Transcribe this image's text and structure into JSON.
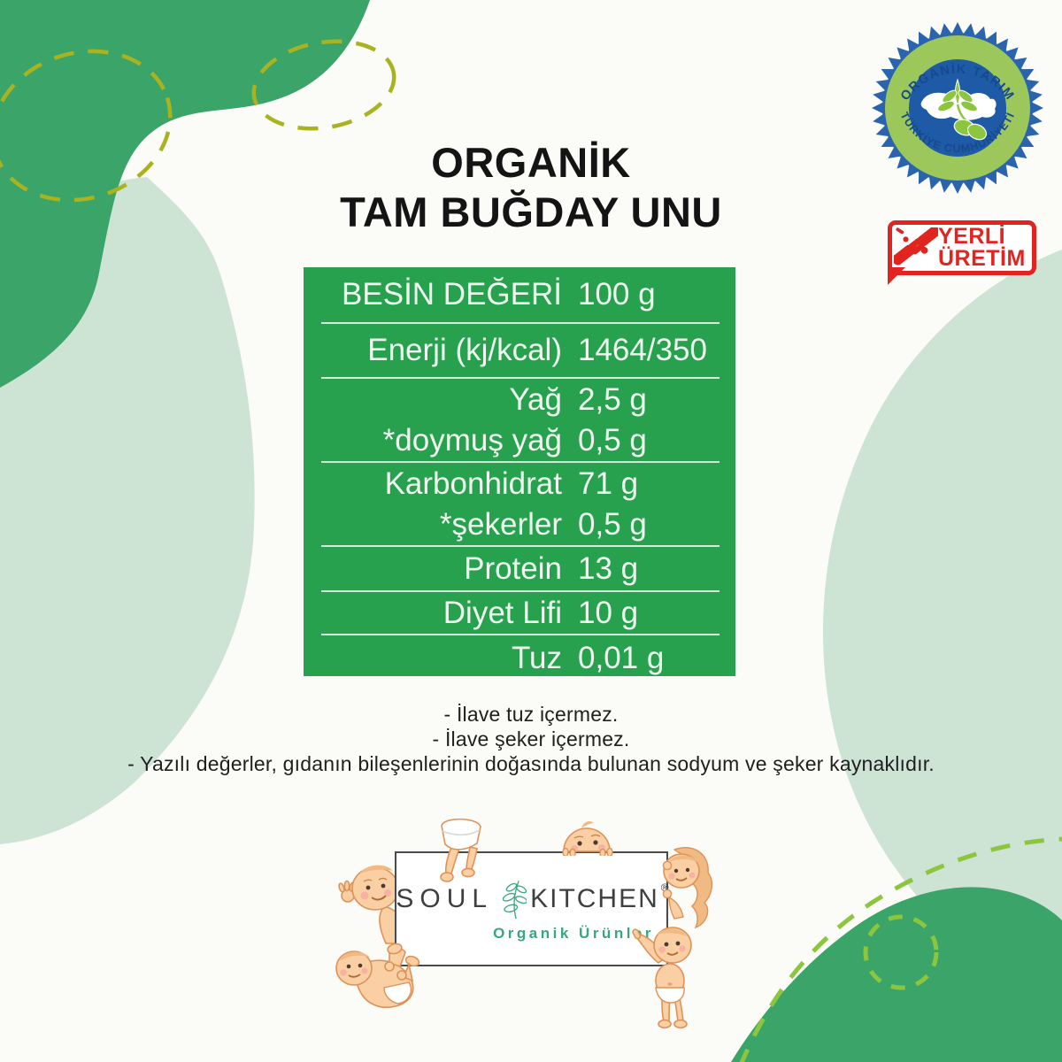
{
  "title": {
    "line1": "ORGANİK",
    "line2": "TAM BUĞDAY UNU"
  },
  "organic_seal": {
    "top_text": "ORGANİK TARIM",
    "bottom_text": "TÜRKİYE CUMHURİYETİ",
    "ring_color": "#9CC75A",
    "blue_color": "#2A63AE",
    "inner_blue": "#1E5AA6",
    "text_color": "#17498F"
  },
  "yerli_uretim_badge": {
    "line1": "YERLİ",
    "line2": "ÜRETİM",
    "color": "#E02420"
  },
  "nutrition_table": {
    "bg_color": "#27A14E",
    "rows": [
      {
        "label": "BESİN DEĞERİ",
        "value": "100 g",
        "sep": true
      },
      {
        "label": "Enerji (kj/kcal)",
        "value": "1464/350",
        "sep": true
      },
      {
        "label": "Yağ",
        "value": "2,5 g",
        "sep": false
      },
      {
        "label": "*doymuş yağ",
        "value": "0,5 g",
        "sep": true
      },
      {
        "label": "Karbonhidrat",
        "value": "71 g",
        "sep": false
      },
      {
        "label": "*şekerler",
        "value": "0,5 g",
        "sep": true
      },
      {
        "label": "Protein",
        "value": "13 g",
        "sep": true
      },
      {
        "label": "Diyet Lifi",
        "value": "10 g",
        "sep": true
      },
      {
        "label": "Tuz",
        "value": "0,01 g",
        "sep": false
      }
    ]
  },
  "footnotes": [
    "- İlave tuz içermez.",
    "- İlave şeker içermez.",
    "- Yazılı değerler, gıdanın bileşenlerinin doğasında bulunan sodyum ve şeker kaynaklıdır."
  ],
  "logo": {
    "word1": "SOUL",
    "word2": "KITCHEN",
    "registered": "®",
    "subtitle": "Organik Ürünler"
  },
  "decor_colors": {
    "dark_green": "#3BA468",
    "light_green": "#CDE4D5",
    "olive_dash": "#A9B31F",
    "bright_dash": "#8CC63F"
  }
}
